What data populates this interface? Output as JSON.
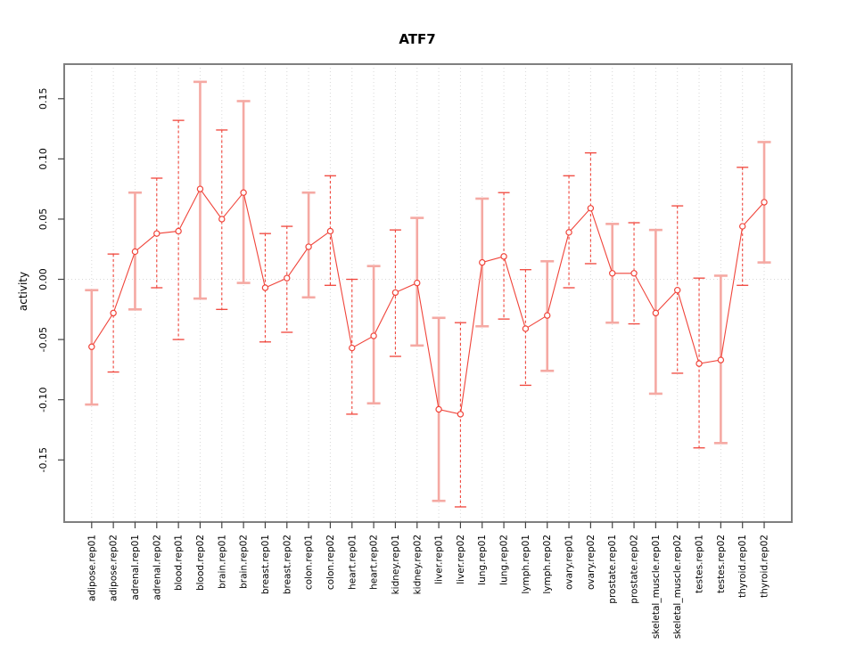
{
  "chart_data": {
    "type": "line",
    "title": "ATF7",
    "xlabel": "",
    "ylabel": "activity",
    "ylim": [
      -0.2016,
      0.1787
    ],
    "grid": {
      "vertical": "dotted line at every category",
      "zero_line": "dotted horizontal at 0",
      "horizontal_other": "none"
    },
    "legend": "none",
    "yticks": {
      "values": [
        -0.15,
        -0.1,
        -0.05,
        0.0,
        0.05,
        0.1,
        0.15
      ],
      "labels": [
        "-0.15",
        "-0.10",
        "-0.05",
        "0.00",
        "0.05",
        "0.10",
        "0.15"
      ]
    },
    "categories": [
      "adipose.rep01",
      "adipose.rep02",
      "adrenal.rep01",
      "adrenal.rep02",
      "blood.rep01",
      "blood.rep02",
      "brain.rep01",
      "brain.rep02",
      "breast.rep01",
      "breast.rep02",
      "colon.rep01",
      "colon.rep02",
      "heart.rep01",
      "heart.rep02",
      "kidney.rep01",
      "kidney.rep02",
      "liver.rep01",
      "liver.rep02",
      "lung.rep01",
      "lung.rep02",
      "lymph.rep01",
      "lymph.rep02",
      "ovary.rep01",
      "ovary.rep02",
      "prostate.rep01",
      "prostate.rep02",
      "skeletal_muscle.rep01",
      "skeletal_muscle.rep02",
      "testes.rep01",
      "testes.rep02",
      "thyroid.rep01",
      "thyroid.rep02"
    ],
    "series": [
      {
        "name": "ATF7 activity",
        "marker": "open-circle",
        "values": [
          -0.056,
          -0.028,
          0.023,
          0.038,
          0.04,
          0.075,
          0.05,
          0.072,
          -0.007,
          0.001,
          0.027,
          0.04,
          -0.057,
          -0.047,
          -0.011,
          -0.003,
          -0.108,
          -0.112,
          0.014,
          0.019,
          -0.041,
          -0.03,
          0.039,
          0.059,
          0.005,
          0.005,
          -0.028,
          -0.009,
          -0.07,
          -0.067,
          0.044,
          0.064
        ],
        "error_upper": [
          -0.009,
          0.021,
          0.072,
          0.084,
          0.132,
          0.164,
          0.124,
          0.148,
          0.038,
          0.044,
          0.072,
          0.086,
          0.0,
          0.011,
          0.041,
          0.051,
          -0.032,
          -0.036,
          0.067,
          0.072,
          0.008,
          0.015,
          0.086,
          0.105,
          0.046,
          0.047,
          0.041,
          0.061,
          0.001,
          0.003,
          0.093,
          0.114
        ],
        "error_lower": [
          -0.104,
          -0.077,
          -0.025,
          -0.007,
          -0.05,
          -0.016,
          -0.025,
          -0.003,
          -0.052,
          -0.044,
          -0.015,
          -0.005,
          -0.112,
          -0.103,
          -0.064,
          -0.055,
          -0.184,
          -0.189,
          -0.039,
          -0.033,
          -0.088,
          -0.076,
          -0.007,
          0.013,
          -0.036,
          -0.037,
          -0.095,
          -0.078,
          -0.14,
          -0.136,
          -0.005,
          0.014
        ],
        "error_bar_styles": [
          "solid",
          "dashed",
          "solid",
          "dashed",
          "dashed",
          "solid",
          "dashed",
          "solid",
          "dashed",
          "dashed",
          "solid",
          "dashed",
          "dashed",
          "solid",
          "dashed",
          "solid",
          "solid",
          "dashed",
          "solid",
          "dashed",
          "dashed",
          "solid",
          "dashed",
          "dashed",
          "solid",
          "dashed",
          "solid",
          "dashed",
          "dashed",
          "solid",
          "dashed",
          "solid"
        ]
      }
    ],
    "colors": {
      "point": "#f0443a",
      "line": "#f0443a",
      "error_bar_solid": "#f5a9a3",
      "error_bar_dashed": "#f0443a",
      "grid": "#d8d8d8",
      "box": "#7f7f7f",
      "tick": "#444444",
      "text": "#000000"
    }
  }
}
